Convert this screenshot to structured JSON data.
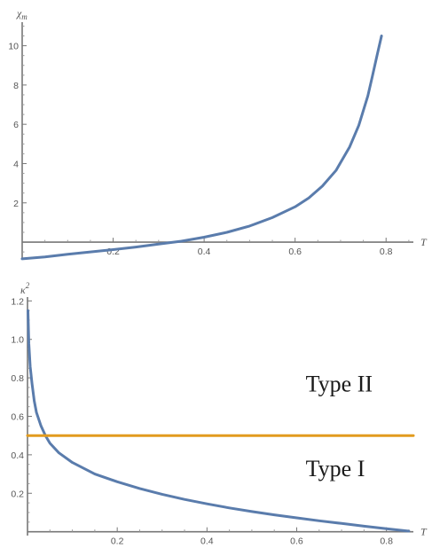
{
  "chart_data": [
    {
      "type": "line",
      "xlabel": "T",
      "ylabel": "χm",
      "xlim": [
        0,
        0.86
      ],
      "ylim": [
        -0.9,
        11.2
      ],
      "xticks": [
        0.2,
        0.4,
        0.6,
        0.8
      ],
      "yticks": [
        2,
        4,
        6,
        8,
        10
      ],
      "series": [
        {
          "color": "#5a7cac",
          "x": [
            0.0,
            0.05,
            0.1,
            0.15,
            0.2,
            0.25,
            0.3,
            0.35,
            0.4,
            0.45,
            0.5,
            0.55,
            0.6,
            0.63,
            0.66,
            0.69,
            0.72,
            0.74,
            0.76,
            0.77,
            0.78,
            0.79
          ],
          "y": [
            -0.85,
            -0.75,
            -0.62,
            -0.5,
            -0.38,
            -0.25,
            -0.1,
            0.05,
            0.25,
            0.5,
            0.82,
            1.25,
            1.8,
            2.25,
            2.85,
            3.65,
            4.85,
            5.95,
            7.45,
            8.45,
            9.5,
            10.5
          ]
        }
      ]
    },
    {
      "type": "line",
      "xlabel": "T",
      "ylabel": "κ²",
      "xlim": [
        0,
        0.86
      ],
      "ylim": [
        -0.02,
        1.22
      ],
      "xticks": [
        0.2,
        0.4,
        0.6,
        0.8
      ],
      "yticks": [
        0.2,
        0.4,
        0.6,
        0.8,
        1.0,
        1.2
      ],
      "series": [
        {
          "color": "#5a7cac",
          "x": [
            0.001,
            0.003,
            0.006,
            0.01,
            0.015,
            0.02,
            0.03,
            0.04,
            0.05,
            0.07,
            0.1,
            0.15,
            0.2,
            0.25,
            0.3,
            0.35,
            0.4,
            0.45,
            0.5,
            0.55,
            0.6,
            0.65,
            0.7,
            0.75,
            0.8,
            0.85
          ],
          "y": [
            1.15,
            0.98,
            0.86,
            0.77,
            0.68,
            0.62,
            0.55,
            0.5,
            0.46,
            0.41,
            0.36,
            0.3,
            0.26,
            0.225,
            0.195,
            0.168,
            0.145,
            0.124,
            0.105,
            0.088,
            0.072,
            0.057,
            0.043,
            0.029,
            0.016,
            0.003
          ]
        },
        {
          "color": "#e29b1e",
          "x": [
            0.0,
            0.86
          ],
          "y": [
            0.5,
            0.5
          ]
        }
      ],
      "annotations": [
        {
          "text": "Type II",
          "x": 0.62,
          "y": 0.73
        },
        {
          "text": "Type I",
          "x": 0.62,
          "y": 0.29
        }
      ]
    }
  ]
}
